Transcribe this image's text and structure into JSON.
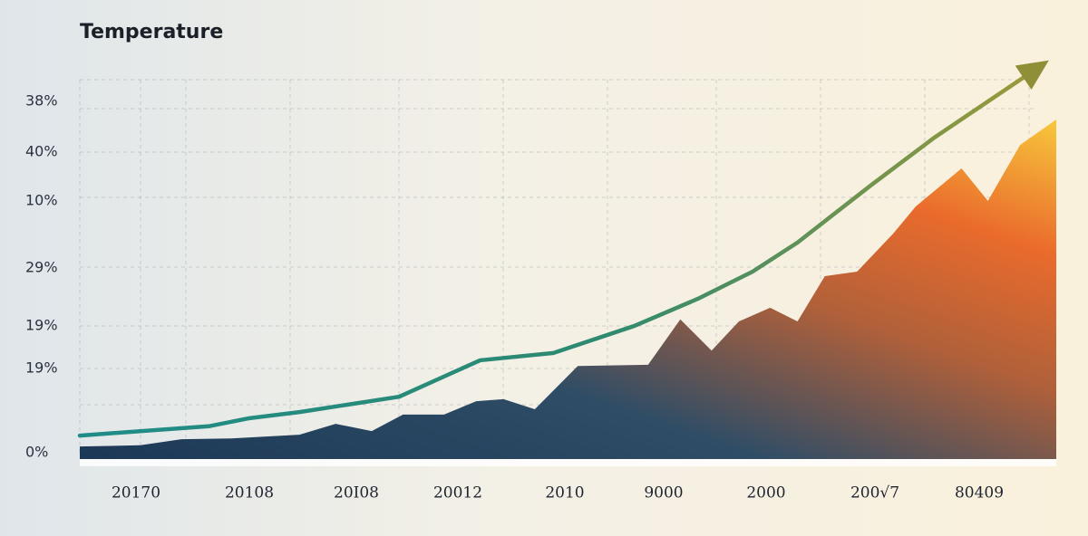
{
  "chart_data": {
    "type": "area_line",
    "title": "Temperature",
    "y_labels": [
      "38%",
      "40%",
      "10%",
      "29%",
      "19%",
      "19%",
      "0%"
    ],
    "x_labels": [
      "20170",
      "20108",
      "20I08",
      "20012",
      "2010",
      "9000",
      "2000",
      "200√7",
      "80409"
    ],
    "xlim": [
      0,
      100
    ],
    "ylim": [
      0,
      100
    ],
    "grid": true,
    "series": [
      {
        "kind": "area",
        "x": [
          0,
          6.2,
          10.4,
          15.5,
          22.5,
          26.2,
          29.9,
          33.1,
          37.3,
          40.6,
          43.4,
          46.6,
          51.0,
          58.2,
          61.5,
          64.7,
          67.5,
          70.7,
          73.5,
          76.3,
          79.6,
          83.3,
          85.6,
          90.3,
          93.0,
          96.3,
          100
        ],
        "values": [
          3.1,
          3.4,
          4.9,
          5.1,
          6.0,
          8.7,
          6.9,
          11.0,
          11.0,
          14.3,
          14.8,
          12.3,
          23.0,
          23.3,
          34.5,
          26.8,
          34.0,
          37.4,
          34.0,
          45.2,
          46.3,
          55.7,
          62.4,
          71.8,
          63.8,
          77.6,
          83.9
        ]
      },
      {
        "kind": "line",
        "x": [
          0,
          13.2,
          17.4,
          22.5,
          32.7,
          41.0,
          48.5,
          56.8,
          63.3,
          68.9,
          73.5,
          81.0,
          87.5,
          92.6,
          97.7
        ],
        "values": [
          5.8,
          8.1,
          10.1,
          11.6,
          15.4,
          24.4,
          26.2,
          32.9,
          39.6,
          46.3,
          53.5,
          67.6,
          79.4,
          87.7,
          96.0
        ]
      }
    ]
  }
}
